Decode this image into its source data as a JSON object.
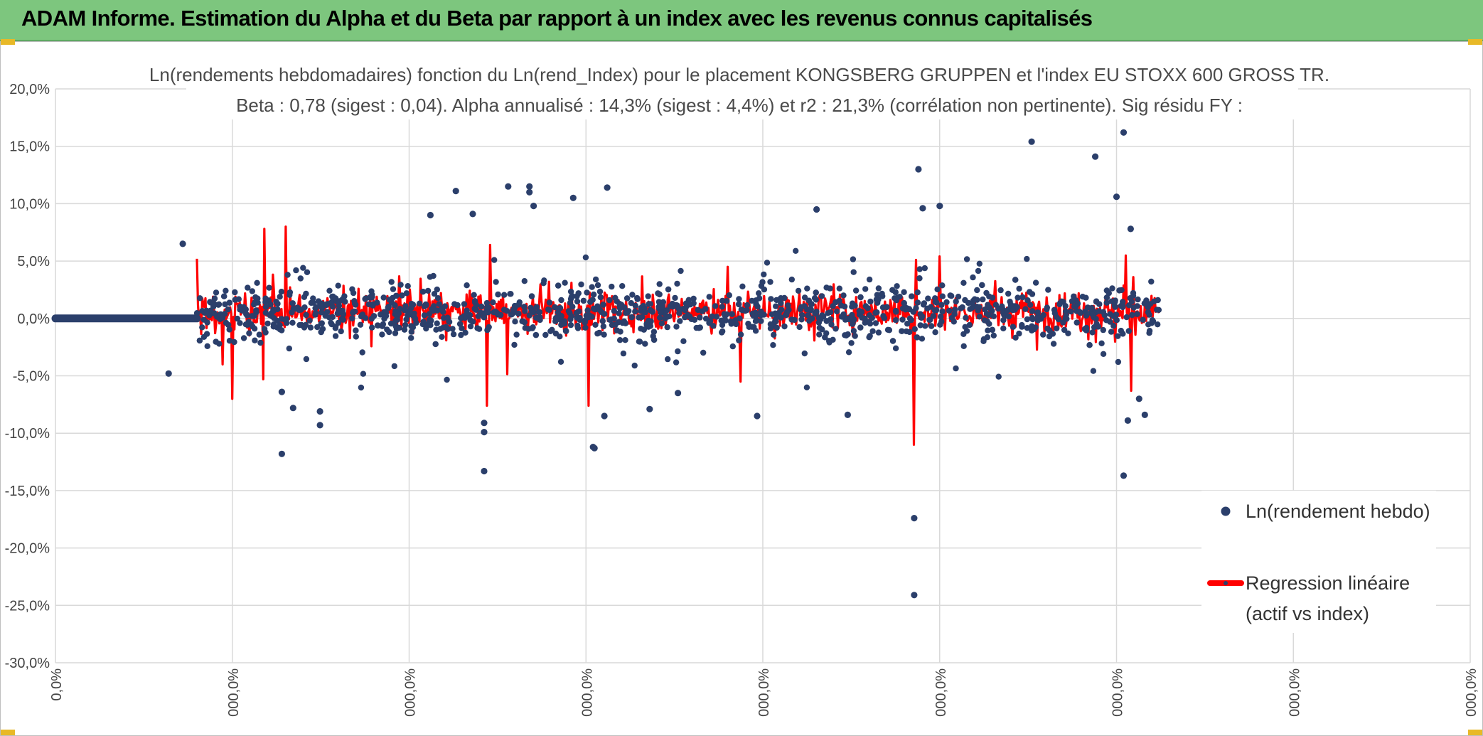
{
  "banner": {
    "title": "ADAM Informe. Estimation du Alpha et du Beta par rapport à un index avec les revenus connus capitalisés"
  },
  "chart_data": {
    "type": "scatter",
    "title_line1": "Ln(rendements hebdomadaires) fonction du Ln(rend_Index) pour le placement KONGSBERG GRUPPEN et l'index EU STOXX 600 GROSS TR.",
    "title_line2": "Beta : 0,78 (sigest : 0,04). Alpha annualisé : 14,3% (sigest : 4,4%) et r2 : 21,3% (corrélation non pertinente). Sig résidu FY :",
    "ylim": [
      -30,
      20
    ],
    "y_ticks": [
      {
        "v": 20,
        "label": "20,0%"
      },
      {
        "v": 15,
        "label": "15,0%"
      },
      {
        "v": 10,
        "label": "10,0%"
      },
      {
        "v": 5,
        "label": "5,0%"
      },
      {
        "v": 0,
        "label": "0,0%"
      },
      {
        "v": -5,
        "label": "-5,0%"
      },
      {
        "v": -10,
        "label": "-10,0%"
      },
      {
        "v": -15,
        "label": "-15,0%"
      },
      {
        "v": -20,
        "label": "-20,0%"
      },
      {
        "v": -25,
        "label": "-25,0%"
      },
      {
        "v": -30,
        "label": "-30,0%"
      }
    ],
    "x_ticks": [
      "0,0%",
      "000,0%",
      "000,0%",
      "000,0%",
      "000,0%",
      "000,0%",
      "000,0%",
      "000,0%",
      "000,0%"
    ],
    "legend": [
      {
        "name": "Ln(rendement hebdo)",
        "color": "#2b3f6b",
        "marker": "dot"
      },
      {
        "name": "Regression linéaire",
        "name_line2": "(actif vs index)",
        "color": "#ff0000",
        "marker": "line"
      }
    ],
    "series": [
      {
        "name": "Ln(rendement hebdo)",
        "color": "#2b3f6b",
        "flat_zero_range": [
          0,
          0.1
        ],
        "points_range": [
          0.1,
          0.78
        ],
        "outliers": [
          {
            "x": 0.08,
            "y": -4.8
          },
          {
            "x": 0.09,
            "y": 6.5
          },
          {
            "x": 0.16,
            "y": -6.4
          },
          {
            "x": 0.16,
            "y": -11.8
          },
          {
            "x": 0.168,
            "y": -7.8
          },
          {
            "x": 0.187,
            "y": -9.3
          },
          {
            "x": 0.187,
            "y": -8.1
          },
          {
            "x": 0.265,
            "y": 9.0
          },
          {
            "x": 0.283,
            "y": 11.1
          },
          {
            "x": 0.295,
            "y": 9.1
          },
          {
            "x": 0.303,
            "y": -13.3
          },
          {
            "x": 0.303,
            "y": -9.9
          },
          {
            "x": 0.303,
            "y": -9.1
          },
          {
            "x": 0.32,
            "y": 11.5
          },
          {
            "x": 0.335,
            "y": 11.5
          },
          {
            "x": 0.335,
            "y": 11.0
          },
          {
            "x": 0.338,
            "y": 9.8
          },
          {
            "x": 0.366,
            "y": 10.5
          },
          {
            "x": 0.38,
            "y": -11.2
          },
          {
            "x": 0.381,
            "y": -11.3
          },
          {
            "x": 0.39,
            "y": 11.4
          },
          {
            "x": 0.388,
            "y": -8.5
          },
          {
            "x": 0.42,
            "y": -7.9
          },
          {
            "x": 0.44,
            "y": -6.5
          },
          {
            "x": 0.496,
            "y": -8.5
          },
          {
            "x": 0.538,
            "y": 9.5
          },
          {
            "x": 0.56,
            "y": -8.4
          },
          {
            "x": 0.607,
            "y": -17.4
          },
          {
            "x": 0.607,
            "y": -24.1
          },
          {
            "x": 0.61,
            "y": 13.0
          },
          {
            "x": 0.613,
            "y": 9.6
          },
          {
            "x": 0.625,
            "y": 9.8
          },
          {
            "x": 0.69,
            "y": 15.4
          },
          {
            "x": 0.755,
            "y": 16.2
          },
          {
            "x": 0.735,
            "y": 14.1
          },
          {
            "x": 0.75,
            "y": 10.6
          },
          {
            "x": 0.755,
            "y": -13.7
          },
          {
            "x": 0.758,
            "y": -8.9
          },
          {
            "x": 0.77,
            "y": -8.4
          },
          {
            "x": 0.766,
            "y": -7.0
          },
          {
            "x": 0.76,
            "y": 7.8
          }
        ]
      },
      {
        "name": "Regression linéaire",
        "color": "#ff0000",
        "points_range": [
          0.1,
          0.78
        ],
        "spikes": [
          {
            "x": 0.1,
            "y": 5.2
          },
          {
            "x": 0.148,
            "y": 7.8
          },
          {
            "x": 0.163,
            "y": 8.0
          },
          {
            "x": 0.125,
            "y": -7.0
          },
          {
            "x": 0.147,
            "y": -5.3
          },
          {
            "x": 0.305,
            "y": -7.6
          },
          {
            "x": 0.307,
            "y": 6.4
          },
          {
            "x": 0.377,
            "y": -7.6
          },
          {
            "x": 0.475,
            "y": 4.5
          },
          {
            "x": 0.484,
            "y": -5.5
          },
          {
            "x": 0.607,
            "y": -11.0
          },
          {
            "x": 0.608,
            "y": 5.1
          },
          {
            "x": 0.625,
            "y": 5.4
          },
          {
            "x": 0.76,
            "y": -6.3
          },
          {
            "x": 0.762,
            "y": 3.6
          }
        ]
      }
    ]
  }
}
